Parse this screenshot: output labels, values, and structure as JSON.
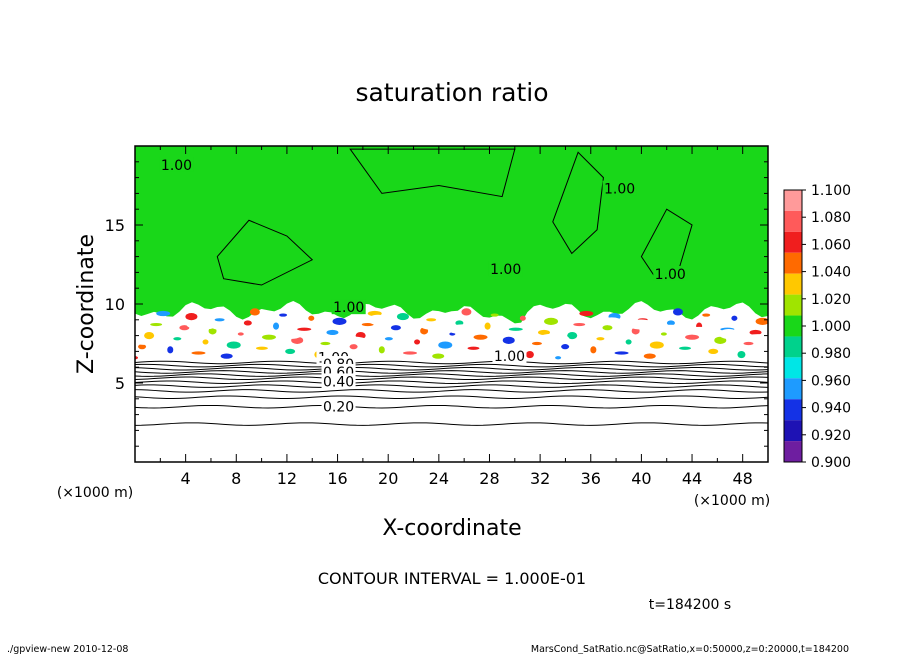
{
  "chart_data": {
    "type": "heatmap",
    "title": "saturation ratio",
    "xlabel": "X-coordinate",
    "ylabel": "Z-coordinate",
    "x_unit_note": "(×1000 m)",
    "y_unit_note": "(×1000 m)",
    "xlim": [
      0,
      50
    ],
    "ylim": [
      0,
      20
    ],
    "x_ticks": [
      4,
      8,
      12,
      16,
      20,
      24,
      28,
      32,
      36,
      40,
      44,
      48
    ],
    "y_ticks": [
      5,
      10,
      15
    ],
    "colorbar": {
      "labels": [
        "1.100",
        "1.080",
        "1.060",
        "1.040",
        "1.020",
        "1.000",
        "0.980",
        "0.960",
        "0.940",
        "0.920",
        "0.900"
      ],
      "colors": [
        "#ff9a9a",
        "#ff5a5a",
        "#f01e1e",
        "#ff6a00",
        "#ffc800",
        "#a0e400",
        "#19d719",
        "#00d28c",
        "#00e6e6",
        "#1e9bff",
        "#1432e6",
        "#1e12b4",
        "#6e1ea0"
      ]
    },
    "layers": {
      "supersaturated_green_color": "#19d719",
      "green_region_z_range": [
        9.6,
        20
      ]
    },
    "contour_labels": [
      {
        "text": "1.00",
        "x": 3.2,
        "z": 18.8
      },
      {
        "text": "1.00",
        "x": 38.2,
        "z": 17.3
      },
      {
        "text": "1.00",
        "x": 29.2,
        "z": 12.2
      },
      {
        "text": "1.00",
        "x": 42.2,
        "z": 11.9
      },
      {
        "text": "1.00",
        "x": 16.8,
        "z": 9.8
      },
      {
        "text": "1.00",
        "x": 29.5,
        "z": 6.7
      },
      {
        "text": "1.00",
        "x": 15.6,
        "z": 6.6
      },
      {
        "text": "0.80",
        "x": 16.0,
        "z": 6.2
      },
      {
        "text": "0.60",
        "x": 16.0,
        "z": 5.7
      },
      {
        "text": "0.40",
        "x": 16.0,
        "z": 5.1
      },
      {
        "text": "0.20",
        "x": 16.0,
        "z": 3.5
      }
    ],
    "contour_interval_text": "CONTOUR INTERVAL = 1.000E-01",
    "time_text": "t=184200 s"
  },
  "footer": {
    "left": "./gpview-new  2010-12-08",
    "right": "MarsCond_SatRatio.nc@SatRatio,x=0:50000,z=0:20000,t=184200"
  }
}
